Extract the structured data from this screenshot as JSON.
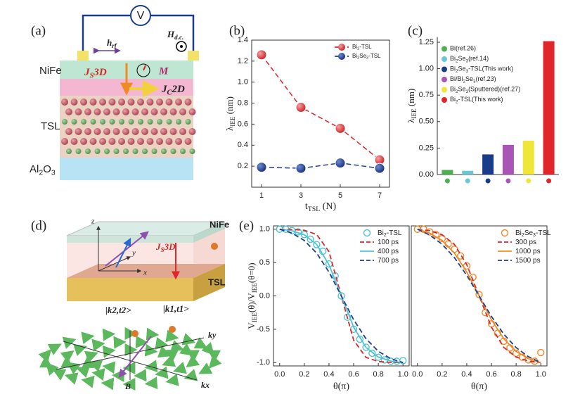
{
  "panel_labels": [
    "(a)",
    "(b)",
    "(c)",
    "(d)",
    "(e)"
  ],
  "panel_a": {
    "voltmeter": "V",
    "rf_field": [
      "h",
      "rf"
    ],
    "dc_field": [
      "H",
      "d.c."
    ],
    "layer_nife": "NiFe",
    "spin_current": [
      "J",
      "S",
      "3D"
    ],
    "magnetization": "M",
    "charge_current": [
      "J",
      "C",
      "2D"
    ],
    "layer_tsl": "TSL",
    "layer_substrate": [
      "Al",
      "2",
      "O",
      "3"
    ]
  },
  "panel_d": {
    "axis_z": "z",
    "axis_y": "y",
    "axis_x": "x",
    "layer_nife": "NiFe",
    "layer_tsl": "TSL",
    "spin_current": [
      "J",
      "S",
      "3D"
    ],
    "state_2": "|k2,t2>",
    "state_1": "|k1,t1>",
    "k_y": "ky",
    "k_x": "kx",
    "field": "B"
  },
  "chart_data": [
    {
      "type": "line",
      "xlabel": [
        "t",
        "TSL",
        " (N)"
      ],
      "ylabel": [
        "λ",
        "IEE",
        " (nm)"
      ],
      "x": [
        1,
        3,
        5,
        7
      ],
      "xlim": [
        0.5,
        7.5
      ],
      "xticks": [
        1,
        3,
        5,
        7
      ],
      "ylim": [
        0,
        1.4
      ],
      "yticks": [
        0.2,
        0.4,
        0.6,
        0.8,
        {
          "value": 1,
          "label": "1.0"
        },
        1.2,
        1.4
      ],
      "legend": "upper right",
      "series": [
        {
          "name": [
            "Bi",
            "2",
            "-TSL"
          ],
          "color": "#d9262b",
          "marker": "circle",
          "line": true,
          "dash": true,
          "values": [
            1.26,
            0.76,
            0.56,
            0.26
          ]
        },
        {
          "name": [
            "Bi",
            "2",
            "Se",
            "3",
            "-TSL"
          ],
          "color": "#1f3f8f",
          "marker": "circle",
          "line": true,
          "dash": true,
          "values": [
            0.19,
            0.18,
            0.23,
            0.18
          ]
        }
      ]
    },
    {
      "type": "bar",
      "ylabel": [
        "λ",
        "IEE",
        " (nm)"
      ],
      "categories": [
        [
          "Bi(ref.26)"
        ],
        [
          "Bi",
          "2",
          "Se",
          "3",
          "(ref.14)"
        ],
        [
          "Bi",
          "2",
          "Se",
          "3",
          "-TSL(This work)"
        ],
        [
          "Bi/Bi",
          "2",
          "Se",
          "3",
          "(ref.23)"
        ],
        [
          "Bi",
          "2",
          "Se",
          "3",
          "(Sputtered)(ref.27)"
        ],
        [
          "Bi",
          "2",
          "-TSL(This work)"
        ]
      ],
      "values": [
        0.043,
        0.035,
        0.19,
        0.28,
        0.32,
        1.26
      ],
      "colors": [
        "#4caf50",
        "#6cc7d4",
        "#1a3a8a",
        "#a855b5",
        "#f0e63a",
        "#e0262a"
      ],
      "ylim": [
        0,
        1.3
      ],
      "yticks": [
        {
          "value": 0,
          "label": "0.00"
        },
        {
          "value": 0.25,
          "label": "0.25"
        },
        {
          "value": 0.5,
          "label": "0.50"
        },
        {
          "value": 0.75,
          "label": "0.75"
        },
        {
          "value": 1,
          "label": "1.00"
        },
        {
          "value": 1.25,
          "label": "1.25"
        }
      ],
      "legend": "upper left"
    },
    {
      "type": "line",
      "xlabel": [
        "θ(π)"
      ],
      "ylabel": [
        "V",
        "IEE",
        "(θ)/V",
        "IEE",
        "(θ=0)"
      ],
      "xlim": [
        -0.05,
        1.05
      ],
      "xticks": [
        {
          "value": 0,
          "label": "0.0"
        },
        0.2,
        0.4,
        0.6,
        0.8,
        {
          "value": 1,
          "label": "1.0"
        }
      ],
      "ylim": [
        -1.05,
        1.05
      ],
      "yticks": [
        {
          "value": -1,
          "label": "-1.0"
        },
        -0.5,
        {
          "value": 0,
          "label": "0.0"
        },
        0.5,
        {
          "value": 1,
          "label": "1.0"
        }
      ],
      "legend": "upper right",
      "series": [
        {
          "name": [
            "Bi",
            "2",
            "-TSL"
          ],
          "color": "#4fc3d4",
          "marker": "circle",
          "line": false,
          "x": [
            0,
            0.05,
            0.1,
            0.15,
            0.2,
            0.25,
            0.3,
            0.35,
            0.4,
            0.45,
            0.5,
            0.55,
            0.6,
            0.65,
            0.7,
            0.75,
            0.8,
            0.85,
            0.9,
            0.95,
            1
          ],
          "values": [
            1,
            1,
            0.98,
            0.96,
            0.92,
            0.85,
            0.77,
            0.67,
            0.48,
            0.3,
            0,
            -0.32,
            -0.5,
            -0.65,
            -0.77,
            -0.86,
            -0.92,
            -0.96,
            -0.98,
            -0.98,
            -0.97
          ]
        },
        {
          "name": [
            "100 ps"
          ],
          "color": "#e0262a",
          "line": true,
          "dash": true,
          "x": [
            0,
            0.1,
            0.2,
            0.3,
            0.4,
            0.5,
            0.6,
            0.7,
            0.8,
            0.9,
            1
          ],
          "values": [
            1,
            0.997,
            0.984,
            0.922,
            0.664,
            0,
            -0.664,
            -0.922,
            -0.984,
            -0.997,
            -1
          ]
        },
        {
          "name": [
            "400 ps"
          ],
          "color": "#4fc3d4",
          "line": true,
          "dash": false,
          "x": [
            0,
            0.1,
            0.2,
            0.3,
            0.4,
            0.5,
            0.6,
            0.7,
            0.8,
            0.9,
            1
          ],
          "values": [
            1,
            0.977,
            0.917,
            0.772,
            0.468,
            0,
            -0.468,
            -0.772,
            -0.917,
            -0.977,
            -1
          ]
        },
        {
          "name": [
            "700 ps"
          ],
          "color": "#1f3f8f",
          "line": true,
          "dash": true,
          "x": [
            0,
            0.1,
            0.2,
            0.3,
            0.4,
            0.5,
            0.6,
            0.7,
            0.8,
            0.9,
            1
          ],
          "values": [
            1,
            0.941,
            0.831,
            0.642,
            0.357,
            0,
            -0.357,
            -0.642,
            -0.831,
            -0.941,
            -1
          ]
        }
      ]
    },
    {
      "type": "line",
      "xlabel": [
        "θ(π)"
      ],
      "xlim": [
        -0.05,
        1.05
      ],
      "xticks": [
        {
          "value": 0,
          "label": "0.0"
        },
        0.2,
        0.4,
        0.6,
        0.8,
        {
          "value": 1,
          "label": "1.0"
        }
      ],
      "ylim": [
        -1.05,
        1.05
      ],
      "legend": "upper right",
      "series": [
        {
          "name": [
            "Bi",
            "2",
            "Se",
            "3",
            "-TSL"
          ],
          "color": "#f08a24",
          "marker": "circle",
          "line": false,
          "x": [
            0,
            0.05,
            0.1,
            0.15,
            0.2,
            0.25,
            0.3,
            0.35,
            0.4,
            0.45,
            0.5,
            0.55,
            0.6,
            0.65,
            0.7,
            0.75,
            0.8,
            0.85,
            0.9,
            0.95,
            1
          ],
          "values": [
            1,
            1,
            0.96,
            0.92,
            0.86,
            0.78,
            0.7,
            0.6,
            0.45,
            0.28,
            0.02,
            -0.25,
            -0.42,
            -0.56,
            -0.68,
            -0.78,
            -0.86,
            -0.92,
            -0.96,
            -0.98,
            -0.85
          ]
        },
        {
          "name": [
            "300 ps"
          ],
          "color": "#e0262a",
          "line": true,
          "dash": true,
          "x": [
            0,
            0.1,
            0.2,
            0.3,
            0.4,
            0.5,
            0.6,
            0.7,
            0.8,
            0.9,
            1
          ],
          "values": [
            1,
            0.977,
            0.917,
            0.772,
            0.468,
            0,
            -0.468,
            -0.772,
            -0.917,
            -0.977,
            -1
          ]
        },
        {
          "name": [
            "1000 ps"
          ],
          "color": "#f08a24",
          "line": true,
          "dash": false,
          "x": [
            0,
            0.1,
            0.2,
            0.3,
            0.4,
            0.5,
            0.6,
            0.7,
            0.8,
            0.9,
            1
          ],
          "values": [
            1,
            0.941,
            0.831,
            0.642,
            0.357,
            0,
            -0.357,
            -0.642,
            -0.831,
            -0.941,
            -1
          ]
        },
        {
          "name": [
            "1500 ps"
          ],
          "color": "#1f3f8f",
          "line": true,
          "dash": true,
          "x": [
            0,
            0.1,
            0.2,
            0.3,
            0.4,
            0.5,
            0.6,
            0.7,
            0.8,
            0.9,
            1
          ],
          "values": [
            1,
            0.912,
            0.775,
            0.574,
            0.308,
            0,
            -0.308,
            -0.574,
            -0.775,
            -0.912,
            -1
          ]
        }
      ]
    }
  ]
}
